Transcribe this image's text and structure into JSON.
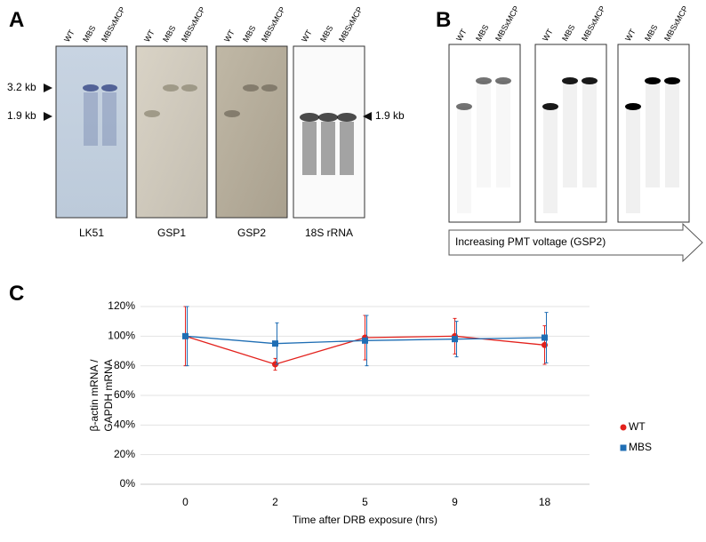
{
  "panel_a": {
    "label": "A",
    "lane_labels": [
      "WT",
      "MBS",
      "MBSxMCP"
    ],
    "size_markers": [
      "3.2 kb",
      "1.9 kb"
    ],
    "right_marker": "1.9 kb",
    "blots": [
      "LK51",
      "GSP1",
      "GSP2",
      "18S rRNA"
    ]
  },
  "panel_b": {
    "label": "B",
    "lane_labels": [
      "WT",
      "MBS",
      "MBSxMCP"
    ],
    "arrow_text": "Increasing PMT voltage (GSP2)"
  },
  "panel_c_label": "C",
  "chart_data": {
    "type": "line",
    "x_label": "Time after DRB exposure (hrs)",
    "y_label_lines": [
      "β-actin mRNA /",
      "GAPDH mRNA"
    ],
    "categories": [
      "0",
      "2",
      "5",
      "9",
      "18"
    ],
    "series": [
      {
        "name": "WT",
        "color": "#e3211c",
        "marker": "circle",
        "values": [
          100,
          81,
          99,
          100,
          94
        ],
        "errors": [
          20,
          4,
          15,
          12,
          13
        ]
      },
      {
        "name": "MBS",
        "color": "#1f6eb4",
        "marker": "square",
        "values": [
          100,
          95,
          97,
          98,
          99
        ],
        "errors": [
          20,
          14,
          17,
          12,
          17
        ]
      }
    ],
    "ylim": [
      0,
      120
    ],
    "yticks": [
      {
        "value": 0,
        "label": "0%"
      },
      {
        "value": 20,
        "label": "20%"
      },
      {
        "value": 40,
        "label": "40%"
      },
      {
        "value": 60,
        "label": "60%"
      },
      {
        "value": 80,
        "label": "80%"
      },
      {
        "value": 100,
        "label": "100%"
      },
      {
        "value": 120,
        "label": "120%"
      }
    ],
    "grid": true,
    "legend": "right"
  }
}
